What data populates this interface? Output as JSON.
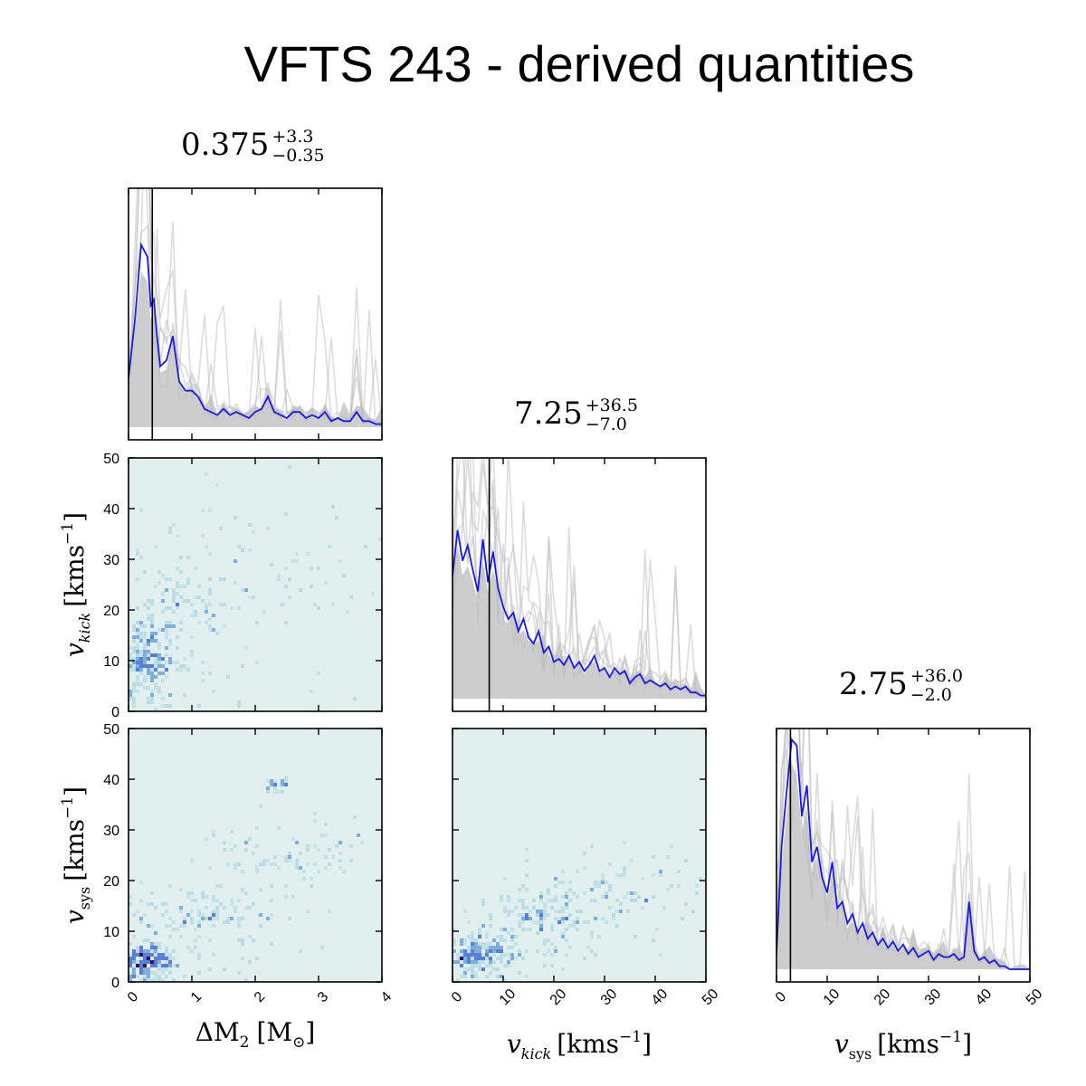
{
  "title": "VFTS 243 - derived quantities",
  "colors": {
    "median_line": "#1a1ae6",
    "walker_lines": "#c0c0c0",
    "fill": "#c8c8c8",
    "marker_line": "#000000",
    "hist2d_background": "#e2efef",
    "hist2d_low": "#a9d5e2",
    "hist2d_mid": "#5a7fd6",
    "hist2d_high": "#3a0f5a"
  },
  "panels": {
    "dm2": {
      "value": "0.375",
      "plus": "+3.3",
      "minus": "−0.35"
    },
    "vkick": {
      "value": "7.25",
      "plus": "+36.5",
      "minus": "−7.0"
    },
    "vsys": {
      "value": "2.75",
      "plus": "+36.0",
      "minus": "−2.0"
    }
  },
  "axes": {
    "dm2": {
      "label_main": "ΔM",
      "label_sub": "2",
      "label_unit": "[M",
      "label_unit_sub": "⊙",
      "label_close": "]",
      "ticks": [
        "0",
        "1",
        "2",
        "3",
        "4"
      ],
      "range": [
        0,
        4
      ]
    },
    "vkick": {
      "label_main": "v",
      "label_sub": "kick",
      "label_unit": "[kms",
      "label_exp": "−1",
      "label_close": "]",
      "ticks": [
        "0",
        "10",
        "20",
        "30",
        "40",
        "50"
      ],
      "range": [
        0,
        50
      ]
    },
    "vsys": {
      "label_main": "v",
      "label_sub": "sys",
      "label_unit": "[kms",
      "label_exp": "−1",
      "label_close": "]",
      "ticks": [
        "0",
        "10",
        "20",
        "30",
        "40",
        "50"
      ],
      "range": [
        0,
        50
      ]
    }
  },
  "chart_data": [
    {
      "type": "line",
      "panel": "dm2 marginal",
      "x_range": [
        0,
        4
      ],
      "marker": 0.375,
      "series": [
        {
          "x": [
            0.0,
            0.1,
            0.2,
            0.3,
            0.35,
            0.4,
            0.45,
            0.5,
            0.6,
            0.7,
            0.8,
            0.9,
            1.0,
            1.1,
            1.2,
            1.3,
            1.4,
            1.5,
            1.6,
            1.7,
            1.8,
            1.9,
            2.0,
            2.1,
            2.2,
            2.3,
            2.4,
            2.5,
            2.6,
            2.7,
            2.8,
            2.9,
            3.0,
            3.1,
            3.2,
            3.3,
            3.4,
            3.5,
            3.6,
            3.7,
            3.8,
            3.9,
            4.0
          ],
          "y": [
            0.16,
            0.35,
            0.6,
            0.56,
            0.4,
            0.42,
            0.3,
            0.2,
            0.22,
            0.3,
            0.15,
            0.12,
            0.12,
            0.1,
            0.06,
            0.05,
            0.04,
            0.06,
            0.04,
            0.05,
            0.04,
            0.03,
            0.05,
            0.06,
            0.1,
            0.05,
            0.04,
            0.03,
            0.05,
            0.05,
            0.03,
            0.04,
            0.03,
            0.05,
            0.02,
            0.03,
            0.02,
            0.02,
            0.05,
            0.02,
            0.02,
            0.01,
            0.01
          ]
        }
      ]
    },
    {
      "type": "line",
      "panel": "vkick marginal",
      "x_range": [
        0,
        50
      ],
      "marker": 7.25,
      "series": [
        {
          "x": [
            0,
            1,
            2,
            3,
            4,
            5,
            6,
            7,
            8,
            9,
            10,
            11,
            12,
            13,
            14,
            15,
            16,
            17,
            18,
            19,
            20,
            21,
            22,
            23,
            24,
            25,
            26,
            27,
            28,
            29,
            30,
            31,
            32,
            33,
            34,
            35,
            36,
            37,
            38,
            39,
            40,
            41,
            42,
            43,
            44,
            45,
            46,
            47,
            48,
            49,
            50
          ],
          "y": [
            0.4,
            0.55,
            0.45,
            0.5,
            0.42,
            0.35,
            0.52,
            0.38,
            0.48,
            0.36,
            0.3,
            0.26,
            0.28,
            0.22,
            0.26,
            0.2,
            0.18,
            0.22,
            0.15,
            0.17,
            0.12,
            0.13,
            0.11,
            0.14,
            0.1,
            0.12,
            0.09,
            0.11,
            0.14,
            0.09,
            0.1,
            0.07,
            0.1,
            0.08,
            0.09,
            0.05,
            0.07,
            0.08,
            0.05,
            0.06,
            0.05,
            0.04,
            0.05,
            0.03,
            0.04,
            0.03,
            0.04,
            0.02,
            0.02,
            0.01,
            0.01
          ]
        }
      ]
    },
    {
      "type": "line",
      "panel": "vsys marginal",
      "x_range": [
        0,
        50
      ],
      "marker": 2.75,
      "series": [
        {
          "x": [
            0,
            1,
            2,
            3,
            4,
            5,
            6,
            7,
            8,
            9,
            10,
            11,
            12,
            13,
            14,
            15,
            16,
            17,
            18,
            19,
            20,
            21,
            22,
            23,
            24,
            25,
            26,
            27,
            28,
            29,
            30,
            31,
            32,
            33,
            34,
            35,
            36,
            37,
            38,
            39,
            40,
            41,
            42,
            43,
            44,
            45,
            46,
            47,
            48,
            49,
            50
          ],
          "y": [
            0.05,
            0.4,
            0.58,
            0.75,
            0.73,
            0.5,
            0.6,
            0.35,
            0.4,
            0.3,
            0.25,
            0.35,
            0.2,
            0.22,
            0.15,
            0.18,
            0.12,
            0.15,
            0.1,
            0.12,
            0.08,
            0.1,
            0.07,
            0.09,
            0.06,
            0.08,
            0.05,
            0.07,
            0.04,
            0.05,
            0.06,
            0.03,
            0.05,
            0.04,
            0.04,
            0.05,
            0.03,
            0.04,
            0.22,
            0.06,
            0.03,
            0.04,
            0.02,
            0.03,
            0.01,
            0.01,
            0.0,
            0.0,
            0.0,
            0.0,
            0.0
          ]
        }
      ]
    },
    {
      "type": "heatmap",
      "panel": "vkick vs dm2",
      "x_range": [
        0,
        4
      ],
      "y_range": [
        0,
        50
      ],
      "clusters": [
        {
          "x": 0.3,
          "y": 8,
          "sx": 0.25,
          "sy": 6,
          "n": 260
        },
        {
          "x": 0.7,
          "y": 15,
          "sx": 0.5,
          "sy": 12,
          "n": 120
        },
        {
          "x": 2.0,
          "y": 20,
          "sx": 1.2,
          "sy": 12,
          "n": 100
        }
      ]
    },
    {
      "type": "heatmap",
      "panel": "vsys vs dm2",
      "x_range": [
        0,
        4
      ],
      "y_range": [
        0,
        50
      ],
      "clusters": [
        {
          "x": 0.3,
          "y": 3,
          "sx": 0.2,
          "sy": 2.5,
          "n": 260
        },
        {
          "x": 1.2,
          "y": 11,
          "sx": 0.6,
          "sy": 5,
          "n": 150
        },
        {
          "x": 2.6,
          "y": 22,
          "sx": 0.7,
          "sy": 6,
          "n": 90
        },
        {
          "x": 2.3,
          "y": 38.5,
          "sx": 0.1,
          "sy": 1,
          "n": 25
        }
      ]
    },
    {
      "type": "heatmap",
      "panel": "vsys vs vkick",
      "x_range": [
        0,
        50
      ],
      "y_range": [
        0,
        50
      ],
      "clusters": [
        {
          "x": 5,
          "y": 4,
          "sx": 4,
          "sy": 3,
          "n": 250
        },
        {
          "x": 17,
          "y": 11,
          "sx": 6,
          "sy": 4,
          "n": 150
        },
        {
          "x": 32,
          "y": 16,
          "sx": 8,
          "sy": 5,
          "n": 110
        }
      ]
    }
  ]
}
